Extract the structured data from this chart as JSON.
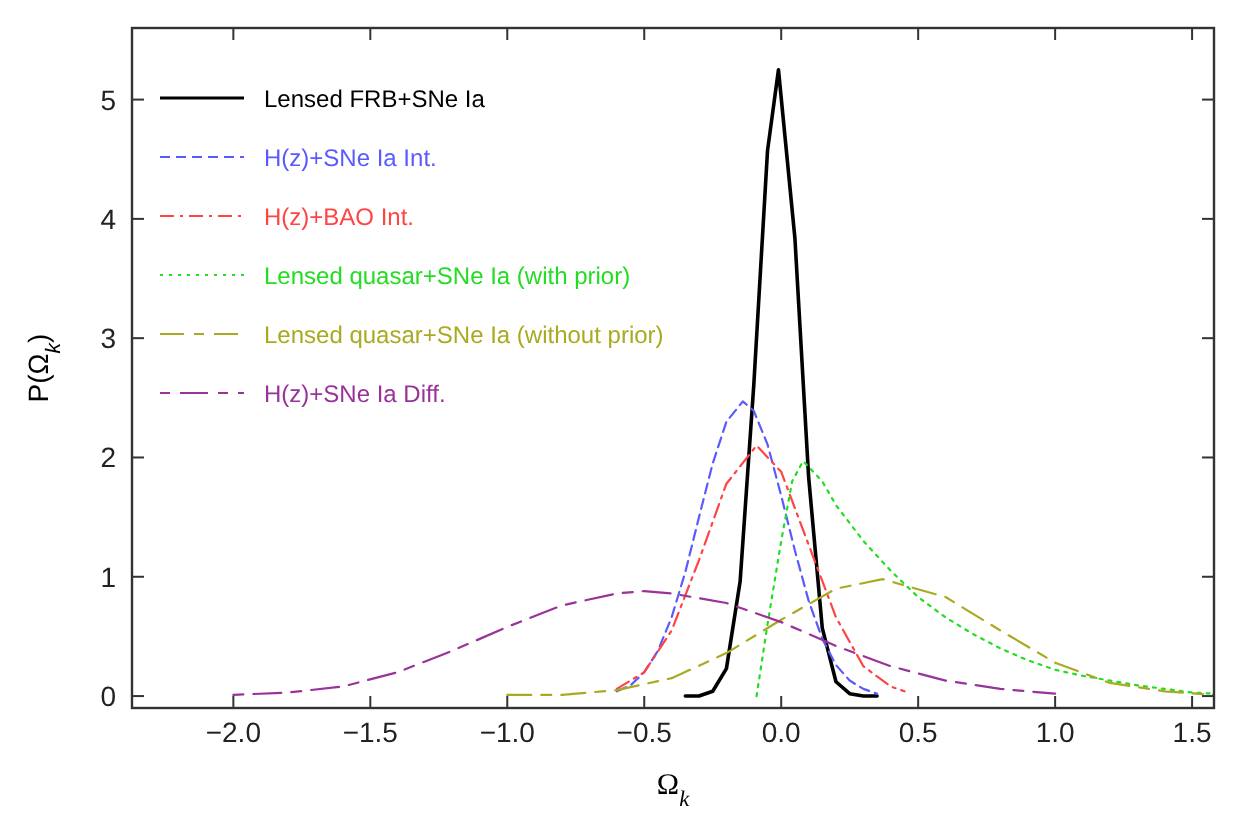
{
  "chart_data": {
    "type": "line",
    "xlabel": "Ω$_{k}$",
    "ylabel": "P(Ω$_{k}$)",
    "xlim": [
      -2.37,
      1.58
    ],
    "ylim": [
      -0.1,
      5.6
    ],
    "xticks": [
      {
        "value": -2,
        "label": "−2.0"
      },
      {
        "value": -1.5,
        "label": "−1.5"
      },
      {
        "value": -1,
        "label": "−1.0"
      },
      {
        "value": -0.5,
        "label": "−0.5"
      },
      {
        "value": 0,
        "label": "0.0"
      },
      {
        "value": 0.5,
        "label": "0.5"
      },
      {
        "value": 1,
        "label": "1.0"
      },
      {
        "value": 1.5,
        "label": "1.5"
      }
    ],
    "yticks": [
      0,
      1,
      2,
      3,
      4,
      5
    ],
    "grid": false,
    "legend": "top left",
    "marker": "none",
    "series": [
      {
        "name": "Lensed FRB+SNe Ia",
        "color": "#000000",
        "line_style": "solid",
        "x": [
          -0.35,
          -0.3,
          -0.25,
          -0.2,
          -0.15,
          -0.1,
          -0.05,
          -0.01,
          0.05,
          0.1,
          0.15,
          0.2,
          0.25,
          0.3,
          0.35
        ],
        "values": [
          0,
          0,
          0.04,
          0.23,
          0.96,
          2.61,
          4.57,
          5.25,
          3.84,
          1.84,
          0.57,
          0.12,
          0.02,
          0,
          0
        ]
      },
      {
        "name": "H(z)+SNe Ia Int.",
        "color": "#5a5aff",
        "line_style": "dashed",
        "x": [
          -0.6,
          -0.55,
          -0.5,
          -0.45,
          -0.4,
          -0.35,
          -0.3,
          -0.25,
          -0.2,
          -0.14,
          -0.1,
          -0.05,
          0,
          0.05,
          0.1,
          0.15,
          0.2,
          0.25,
          0.3,
          0.35
        ],
        "values": [
          0.04,
          0.09,
          0.2,
          0.38,
          0.66,
          1.04,
          1.5,
          1.95,
          2.3,
          2.47,
          2.39,
          2.11,
          1.68,
          1.22,
          0.8,
          0.48,
          0.26,
          0.13,
          0.06,
          0.02
        ]
      },
      {
        "name": "H(z)+BAO Int.",
        "color": "#ff4444",
        "line_style": "dashdot",
        "x": [
          -0.6,
          -0.5,
          -0.4,
          -0.3,
          -0.2,
          -0.09,
          0,
          0.1,
          0.2,
          0.3,
          0.4,
          0.45
        ],
        "values": [
          0.06,
          0.2,
          0.55,
          1.14,
          1.78,
          2.1,
          1.88,
          1.27,
          0.66,
          0.25,
          0.08,
          0.04
        ]
      },
      {
        "name": "Lensed quasar+SNe Ia (with prior)",
        "color": "#22dd22",
        "line_style": "dotted",
        "x": [
          -0.09,
          -0.05,
          0,
          0.04,
          0.08,
          0.15,
          0.2,
          0.3,
          0.4,
          0.5,
          0.6,
          0.7,
          0.8,
          0.9,
          1,
          1.1,
          1.2,
          1.3,
          1.4,
          1.5,
          1.58
        ],
        "values": [
          0,
          0.6,
          1.3,
          1.8,
          1.97,
          1.8,
          1.6,
          1.3,
          1.05,
          0.83,
          0.66,
          0.52,
          0.4,
          0.3,
          0.22,
          0.17,
          0.13,
          0.09,
          0.06,
          0.03,
          0.02
        ]
      },
      {
        "name": "Lensed quasar+SNe Ia (without prior)",
        "color": "#aaaa22",
        "line_style": "longdash",
        "x": [
          -1,
          -0.8,
          -0.6,
          -0.4,
          -0.2,
          0,
          0.2,
          0.37,
          0.6,
          0.8,
          1,
          1.2,
          1.4,
          1.58
        ],
        "values": [
          0.01,
          0.01,
          0.05,
          0.15,
          0.36,
          0.64,
          0.9,
          0.98,
          0.83,
          0.55,
          0.28,
          0.11,
          0.04,
          0.01
        ]
      },
      {
        "name": "H(z)+SNe Ia Diff.",
        "color": "#993399",
        "line_style": "dashlong",
        "x": [
          -2,
          -1.8,
          -1.6,
          -1.4,
          -1.2,
          -1,
          -0.8,
          -0.6,
          -0.5,
          -0.4,
          -0.2,
          0,
          0.2,
          0.4,
          0.6,
          0.8,
          1
        ],
        "values": [
          0.01,
          0.03,
          0.08,
          0.2,
          0.38,
          0.58,
          0.76,
          0.86,
          0.88,
          0.86,
          0.78,
          0.62,
          0.42,
          0.25,
          0.13,
          0.06,
          0.02
        ]
      }
    ]
  }
}
